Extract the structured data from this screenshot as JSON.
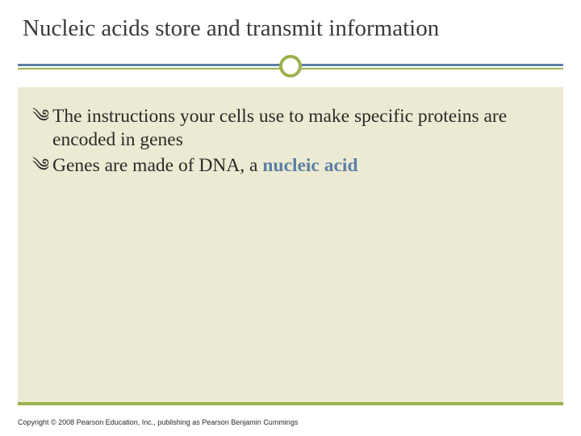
{
  "slide": {
    "title": "Nucleic acids store and transmit information",
    "background_color": "#ffffff",
    "content_background": "#ecead2",
    "divider": {
      "line1_color": "#5b7fa6",
      "line2_color": "#9cb24c",
      "circle_border_color": "#9cb24c",
      "circle_fill": "#ffffff"
    },
    "bullets": [
      {
        "glyph": "༄",
        "text_parts": {
          "pre": "The instructions your cells use to make specific proteins are encoded in genes",
          "keyword": "",
          "post": ""
        }
      },
      {
        "glyph": "༄",
        "text_parts": {
          "pre": "Genes are made of DNA, a ",
          "keyword": "nucleic acid",
          "post": ""
        }
      }
    ],
    "copyright": "Copyright © 2008 Pearson Education, Inc., publishing as Pearson Benjamin Cummings",
    "title_fontsize": 29,
    "bullet_fontsize": 23.5,
    "text_color": "#2a2a2a",
    "keyword_color": "#5b7fa6",
    "bottom_border_color": "#9cb24c"
  }
}
